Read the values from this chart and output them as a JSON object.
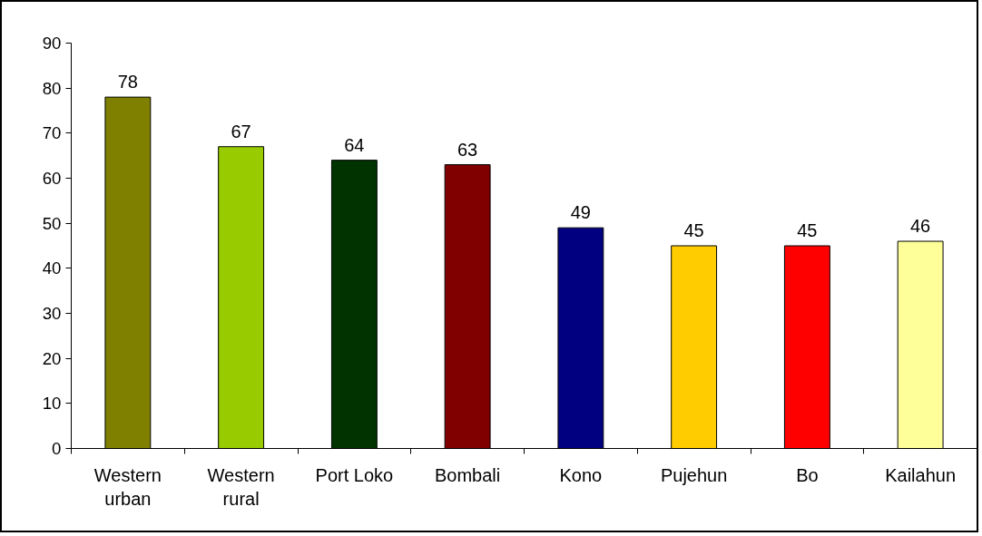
{
  "chart_data": {
    "type": "bar",
    "categories": [
      "Western urban",
      "Western rural",
      "Port Loko",
      "Bombali",
      "Kono",
      "Pujehun",
      "Bo",
      "Kailahun"
    ],
    "values": [
      78,
      67,
      64,
      63,
      49,
      45,
      45,
      46
    ],
    "colors": [
      "#808000",
      "#99cc00",
      "#003300",
      "#800000",
      "#000080",
      "#ffcc00",
      "#ff0000",
      "#ffff99"
    ],
    "ylim": [
      0,
      90
    ],
    "yticks": [
      0,
      10,
      20,
      30,
      40,
      50,
      60,
      70,
      80,
      90
    ],
    "data_labels": true
  }
}
